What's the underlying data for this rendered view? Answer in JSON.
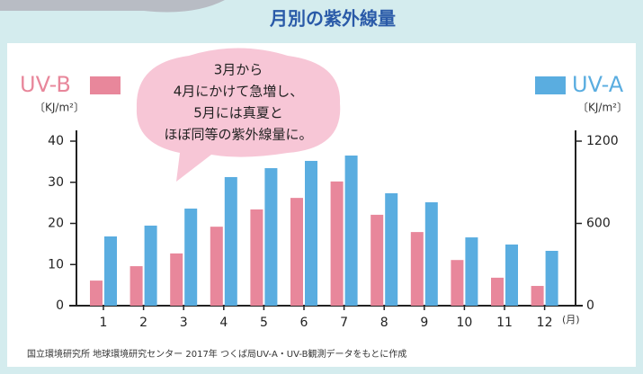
{
  "chart_data": {
    "type": "bar",
    "title": "月別の紫外線量",
    "categories": [
      "1",
      "2",
      "3",
      "4",
      "5",
      "6",
      "7",
      "8",
      "9",
      "10",
      "11",
      "12"
    ],
    "x_unit": "(月)",
    "series": [
      {
        "name": "UV-B",
        "color": "#e8879b",
        "axis": "y",
        "values": [
          6.1,
          9.6,
          12.7,
          19.2,
          23.4,
          26.2,
          30.2,
          22.1,
          17.9,
          11.1,
          6.8,
          4.8
        ]
      },
      {
        "name": "UV-A",
        "color": "#5aade0",
        "axis": "y2",
        "values": [
          505,
          584,
          708,
          938,
          1003,
          1056,
          1095,
          820,
          754,
          498,
          446,
          400
        ]
      }
    ],
    "ylabel": "〔KJ/m²〕",
    "y2label": "〔KJ/m²〕",
    "ylim": [
      0,
      40
    ],
    "yticks": [
      0,
      10,
      20,
      30,
      40
    ],
    "y2lim": [
      0,
      1200
    ],
    "y2ticks": [
      0,
      600,
      1200
    ],
    "annotation": [
      "3月から",
      "4月にかけて急増し、",
      "5月には真夏と",
      "ほぼ同等の紫外線量に。"
    ],
    "source": "国立環境研究所 地球環境研究センター 2017年 つくば局UV-A・UV-B観測データをもとに作成"
  }
}
